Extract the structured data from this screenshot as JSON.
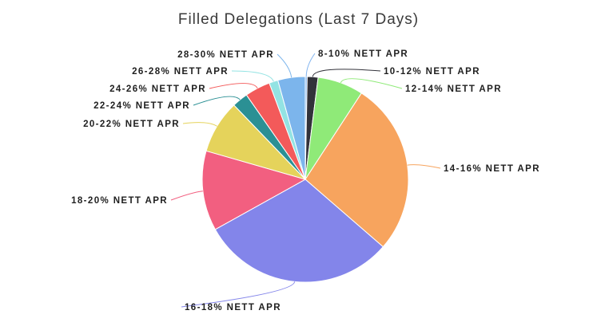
{
  "chart_data": {
    "type": "pie",
    "title": "Filled Delegations (Last 7 Days)",
    "categories": [
      "8-10% NETT APR",
      "10-12% NETT APR",
      "12-14% NETT APR",
      "14-16% NETT APR",
      "16-18% NETT APR",
      "18-20% NETT APR",
      "20-22% NETT APR",
      "22-24% NETT APR",
      "24-26% NETT APR",
      "26-28% NETT APR",
      "28-30% NETT APR"
    ],
    "values": [
      0.3,
      1.7,
      7.2,
      27.3,
      30.6,
      12.6,
      8.4,
      2.5,
      4.0,
      1.4,
      4.3
    ],
    "colors": [
      "#81b4ef",
      "#32323a",
      "#8fea78",
      "#f7a45e",
      "#8385ea",
      "#f25f80",
      "#e5d35b",
      "#2b9094",
      "#f35a5a",
      "#93e3e3",
      "#7cb5ec"
    ]
  }
}
